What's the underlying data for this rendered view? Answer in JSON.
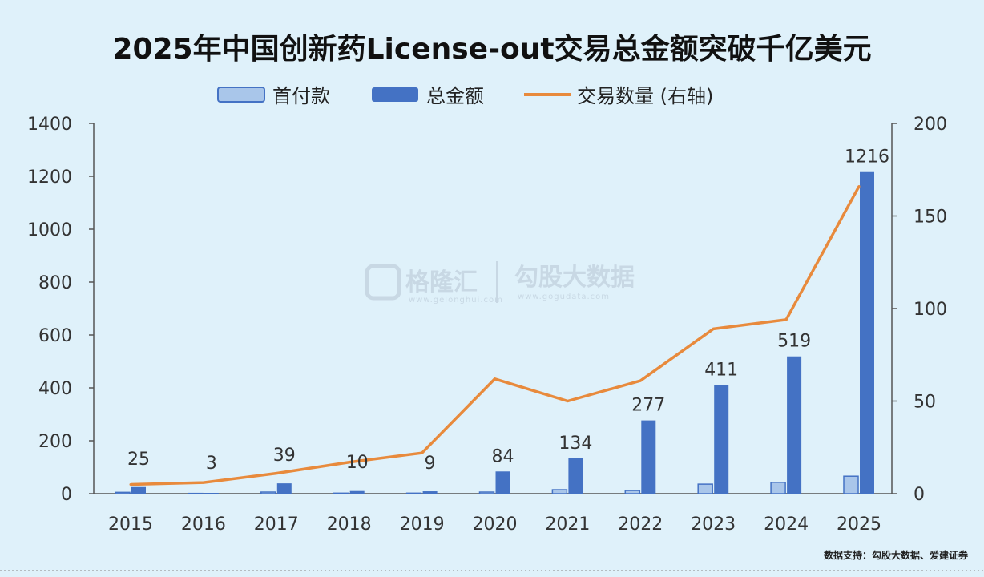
{
  "chart_data": {
    "type": "bar",
    "title": "2025年中国创新药License-out交易总金额突破千亿美元",
    "categories": [
      "2015",
      "2016",
      "2017",
      "2018",
      "2019",
      "2020",
      "2021",
      "2022",
      "2023",
      "2024",
      "2025"
    ],
    "series": [
      {
        "name": "首付款",
        "kind": "bar",
        "axis": "left",
        "color": "#a9c6ea",
        "values": [
          5,
          1,
          6,
          2,
          2,
          6,
          15,
          12,
          36,
          43,
          66
        ]
      },
      {
        "name": "总金额",
        "kind": "bar",
        "axis": "left",
        "color": "#4472c4",
        "values": [
          25,
          3,
          39,
          10,
          9,
          84,
          134,
          277,
          411,
          519,
          1216
        ]
      },
      {
        "name": "交易数量 (右轴)",
        "kind": "line",
        "axis": "right",
        "color": "#e88a3c",
        "values": [
          5,
          6,
          11,
          17,
          22,
          62,
          50,
          61,
          89,
          94,
          166
        ]
      }
    ],
    "data_labels": [
      "25",
      "3",
      "39",
      "10",
      "9",
      "84",
      "134",
      "277",
      "411",
      "519",
      "1216"
    ],
    "ylim": [
      0,
      1400
    ],
    "y_ticks": [
      "0",
      "200",
      "400",
      "600",
      "800",
      "1000",
      "1200",
      "1400"
    ],
    "y2lim": [
      0,
      200
    ],
    "y2_ticks": [
      "0",
      "50",
      "100",
      "150",
      "200"
    ],
    "legend_position": "top-center",
    "grid": false
  },
  "watermark": {
    "brand1": "格隆汇",
    "url1": "www.gelonghui.com",
    "brand2": "勾股大数据",
    "url2": "www.gogudata.com"
  },
  "source": "数据支持：勾股大数据、爱建证券",
  "colors": {
    "background": "#dff1fa",
    "axis": "#555555"
  }
}
